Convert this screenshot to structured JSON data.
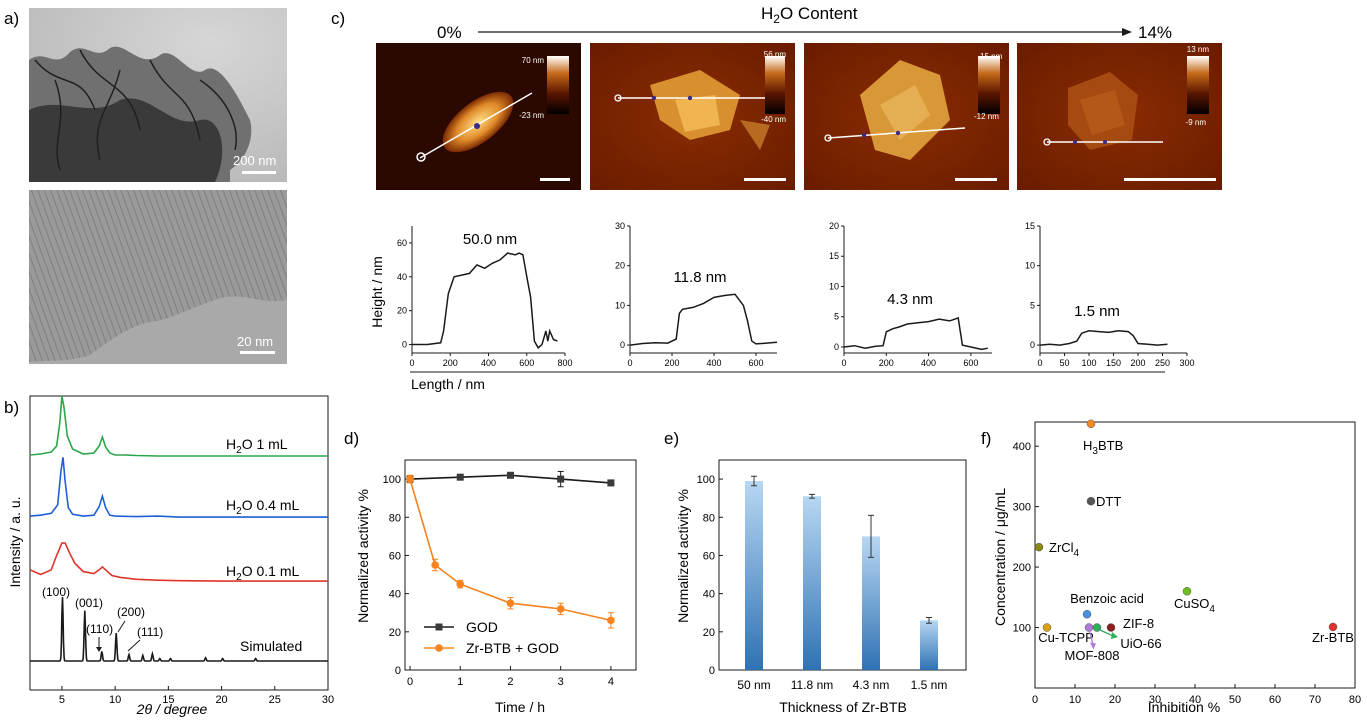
{
  "panels": {
    "a": {
      "letter": "a)",
      "scale_top": "200 nm",
      "scale_bottom": "20 nm"
    },
    "c": {
      "letter": "c)",
      "start": "0%",
      "end": "14%",
      "header_main": "H",
      "header_sub": "2",
      "header_rest": "O Content"
    },
    "b": {
      "letter": "b)"
    },
    "d": {
      "letter": "d)"
    },
    "e": {
      "letter": "e)"
    },
    "f": {
      "letter": "f)"
    }
  },
  "afm_images": [
    {
      "max": "70 nm",
      "min": "-23 nm"
    },
    {
      "max": "56 nm",
      "min": "-40 nm"
    },
    {
      "max": "15 nm",
      "min": "-12 nm"
    },
    {
      "max": "13 nm",
      "min": "-9 nm"
    }
  ],
  "colors": {
    "green": "#2ca64a",
    "blue": "#1f5fd6",
    "red": "#e0342b",
    "black": "#1a1a1a",
    "orange": "#f5831f",
    "afm_dark": "#2b0800",
    "afm_light": "#f4c35a",
    "bar_top": "#a8cdee",
    "bar_bottom": "#2f72b4"
  },
  "chart_data": [
    {
      "id": "c-profiles",
      "type": "line",
      "xlabel": "Length / nm",
      "ylabel": "Height / nm",
      "profiles": [
        {
          "label": "50.0 nm",
          "xlim": [
            0,
            800
          ],
          "ylim": [
            -5,
            70
          ],
          "xticks": [
            "0",
            "200",
            "400",
            "600",
            "800"
          ],
          "yticks": [
            "0",
            "20",
            "40",
            "60"
          ],
          "x": [
            0,
            80,
            150,
            165,
            190,
            220,
            260,
            300,
            340,
            380,
            420,
            460,
            500,
            540,
            560,
            580,
            600,
            620,
            640,
            660,
            680,
            700,
            710,
            720,
            740,
            760
          ],
          "y": [
            0,
            0,
            1,
            8,
            30,
            40,
            41,
            42,
            47,
            45,
            48,
            50,
            54,
            53,
            54,
            53,
            40,
            28,
            2,
            -2,
            0,
            8,
            2,
            8,
            3,
            2
          ]
        },
        {
          "label": "11.8 nm",
          "xlim": [
            0,
            700
          ],
          "ylim": [
            -2,
            30
          ],
          "xticks": [
            "0",
            "200",
            "400",
            "600"
          ],
          "yticks": [
            "0",
            "10",
            "20",
            "30"
          ],
          "x": [
            0,
            60,
            120,
            180,
            220,
            235,
            250,
            300,
            350,
            400,
            450,
            500,
            540,
            560,
            580,
            600,
            650,
            700
          ],
          "y": [
            0,
            0.4,
            0.6,
            0.5,
            1.5,
            8,
            9,
            9.5,
            10.5,
            12,
            12.5,
            12.8,
            10,
            6,
            1,
            0.3,
            0.5,
            0.7
          ]
        },
        {
          "label": "4.3 nm",
          "xlim": [
            0,
            700
          ],
          "ylim": [
            -1,
            20
          ],
          "xticks": [
            "0",
            "200",
            "400",
            "600"
          ],
          "yticks": [
            "0",
            "5",
            "10",
            "15",
            "20"
          ],
          "x": [
            0,
            50,
            100,
            150,
            185,
            200,
            230,
            260,
            300,
            350,
            400,
            450,
            500,
            540,
            560,
            600,
            650,
            680
          ],
          "y": [
            0,
            0.2,
            -0.2,
            0.1,
            0.2,
            2.5,
            3,
            3.3,
            3.8,
            4,
            4.2,
            4.6,
            4.3,
            4.8,
            0.3,
            0,
            -0.4,
            -0.2
          ]
        },
        {
          "label": "1.5 nm",
          "xlim": [
            0,
            300
          ],
          "ylim": [
            -1,
            15
          ],
          "xticks": [
            "0",
            "50",
            "100",
            "150",
            "200",
            "250",
            "300"
          ],
          "yticks": [
            "0",
            "5",
            "10",
            "15"
          ],
          "x": [
            0,
            20,
            40,
            60,
            75,
            85,
            100,
            120,
            140,
            160,
            180,
            190,
            200,
            220,
            240,
            260
          ],
          "y": [
            0,
            0.1,
            0,
            0.2,
            0.5,
            1.5,
            1.8,
            1.7,
            1.6,
            1.8,
            1.7,
            1.2,
            0.2,
            0.1,
            0,
            0.1
          ]
        }
      ]
    },
    {
      "id": "b-xrd",
      "type": "line",
      "xlabel": "2θ / degree",
      "ylabel": "Intensity / a. u.",
      "xlim": [
        2,
        30
      ],
      "xticks": [
        "5",
        "10",
        "15",
        "20",
        "25",
        "30"
      ],
      "series": [
        {
          "name": "H2O 1 mL",
          "label_main": "H",
          "label_sub": "2",
          "label_rest": "O 1 mL",
          "color": "green",
          "x": [
            2,
            3,
            4,
            4.5,
            4.8,
            5.0,
            5.2,
            5.5,
            6,
            7,
            8,
            8.5,
            8.8,
            9.1,
            9.5,
            10,
            11,
            12,
            14,
            16,
            18,
            20,
            23,
            26,
            30
          ],
          "y": [
            0.3,
            0.4,
            0.6,
            1.2,
            3.5,
            6.2,
            5,
            2.2,
            0.9,
            0.4,
            0.5,
            1.2,
            2.1,
            1.1,
            0.5,
            0.3,
            0.3,
            0.25,
            0.2,
            0.2,
            0.2,
            0.2,
            0.2,
            0.2,
            0.2
          ]
        },
        {
          "name": "H2O 0.4 mL",
          "label_main": "H",
          "label_sub": "2",
          "label_rest": "O 0.4 mL",
          "color": "blue",
          "x": [
            2,
            3,
            4,
            4.6,
            4.9,
            5.1,
            5.3,
            5.6,
            6,
            7,
            8,
            8.5,
            8.8,
            9.1,
            9.5,
            10,
            12,
            14,
            16,
            20,
            23,
            26,
            30
          ],
          "y": [
            0.3,
            0.4,
            0.6,
            1.5,
            5,
            6.5,
            4,
            1.2,
            0.5,
            0.3,
            0.4,
            1.3,
            2.4,
            1.2,
            0.4,
            0.3,
            0.25,
            0.3,
            0.2,
            0.2,
            0.2,
            0.2,
            0.2
          ]
        },
        {
          "name": "H2O 0.1 mL",
          "label_main": "H",
          "label_sub": "2",
          "label_rest": "O 0.1 mL",
          "color": "red",
          "x": [
            2,
            3,
            4,
            4.5,
            5,
            5.3,
            5.7,
            6.2,
            7,
            8,
            8.5,
            8.8,
            9.2,
            9.7,
            10.5,
            12,
            14,
            16,
            20,
            25,
            30
          ],
          "y": [
            1.5,
            1.0,
            1.5,
            3,
            4.3,
            4.3,
            3.3,
            2.2,
            1.3,
            1.1,
            1.5,
            1.8,
            1.4,
            0.9,
            0.7,
            0.5,
            0.4,
            0.35,
            0.3,
            0.3,
            0.3
          ]
        },
        {
          "name": "Simulated",
          "label_main": "Simulated",
          "color": "black",
          "peaks": [
            [
              5.05,
              8
            ],
            [
              7.15,
              6.3
            ],
            [
              8.75,
              1.2
            ],
            [
              10.1,
              3.5
            ],
            [
              11.3,
              0.8
            ],
            [
              12.6,
              0.7
            ],
            [
              13.5,
              0.9
            ],
            [
              14.2,
              0.3
            ],
            [
              15.2,
              0.3
            ],
            [
              18.5,
              0.4
            ],
            [
              20.1,
              0.3
            ],
            [
              23.2,
              0.3
            ]
          ]
        }
      ],
      "peak_labels": [
        "(100)",
        "(001)",
        "(110)",
        "(200)",
        "(111)"
      ]
    },
    {
      "id": "d-activity",
      "type": "line",
      "xlabel": "Time / h",
      "ylabel": "Normalized activity %",
      "xlim": [
        -0.1,
        4.5
      ],
      "ylim": [
        0,
        110
      ],
      "xticks": [
        "0",
        "1",
        "2",
        "3",
        "4"
      ],
      "yticks": [
        "0",
        "20",
        "40",
        "60",
        "80",
        "100"
      ],
      "legend_position": "bottom-left",
      "series": [
        {
          "name": "GOD",
          "color": "black",
          "marker": "square",
          "x": [
            0,
            1,
            2,
            3,
            4
          ],
          "y": [
            100,
            101,
            102,
            100,
            98
          ],
          "err": [
            1,
            1,
            1,
            4,
            1
          ]
        },
        {
          "name": "Zr-BTB + GOD",
          "color": "orange",
          "marker": "circle",
          "x": [
            0,
            0.5,
            1,
            2,
            3,
            4
          ],
          "y": [
            100,
            55,
            45,
            35,
            32,
            26
          ],
          "err": [
            2,
            3,
            2,
            3,
            3,
            4
          ]
        }
      ]
    },
    {
      "id": "e-thickness",
      "type": "bar",
      "xlabel": "Thickness of Zr-BTB",
      "ylabel": "Normalized activity %",
      "ylim": [
        0,
        110
      ],
      "yticks": [
        "0",
        "20",
        "40",
        "60",
        "80",
        "100"
      ],
      "categories": [
        "50 nm",
        "11.8 nm",
        "4.3 nm",
        "1.5 nm"
      ],
      "values": [
        99,
        91,
        70,
        26
      ],
      "err": [
        2.5,
        1,
        11,
        1.5
      ]
    },
    {
      "id": "f-inhibition",
      "type": "scatter",
      "xlabel": "Inhibition %",
      "ylabel": "Concentration / μg/mL",
      "xlim": [
        0,
        80
      ],
      "ylim": [
        0,
        440
      ],
      "xticks": [
        "0",
        "10",
        "20",
        "30",
        "40",
        "50",
        "60",
        "70",
        "80"
      ],
      "yticks": [
        "100",
        "200",
        "300",
        "400"
      ],
      "points": [
        {
          "label": "H3BTB",
          "label_main": "H",
          "label_sub": "3",
          "label_rest": "BTB",
          "x": 14,
          "y": 437,
          "color": "#f08a24"
        },
        {
          "label": "DTT",
          "label_main": "DTT",
          "x": 14,
          "y": 309,
          "color": "#555555"
        },
        {
          "label": "ZrCl4",
          "label_main": "ZrCl",
          "label_sub": "4",
          "label_rest": "",
          "x": 1,
          "y": 233,
          "color": "#8a8a10"
        },
        {
          "label": "CuSO4",
          "label_main": "CuSO",
          "label_sub": "4",
          "label_rest": "",
          "x": 38,
          "y": 160,
          "color": "#6abf1e"
        },
        {
          "label": "Benzoic acid",
          "label_main": "Benzoic acid",
          "x": 13,
          "y": 122,
          "color": "#4a8ee0"
        },
        {
          "label": "ZIF-8",
          "label_main": "ZIF-8",
          "x": 19,
          "y": 100,
          "color": "#8a2020"
        },
        {
          "label": "Cu-TCPP",
          "label_main": "Cu-TCPP",
          "x": 3,
          "y": 100,
          "color": "#d7a010"
        },
        {
          "label": "MOF-808",
          "label_main": "MOF-808",
          "x": 13.5,
          "y": 100,
          "color": "#b07ad8"
        },
        {
          "label": "UiO-66",
          "label_main": "UiO-66",
          "x": 15.5,
          "y": 100,
          "color": "#2fae5a"
        },
        {
          "label": "Zr-BTB",
          "label_main": "Zr-BTB",
          "x": 74.5,
          "y": 101,
          "color": "#e8302a"
        }
      ]
    }
  ]
}
